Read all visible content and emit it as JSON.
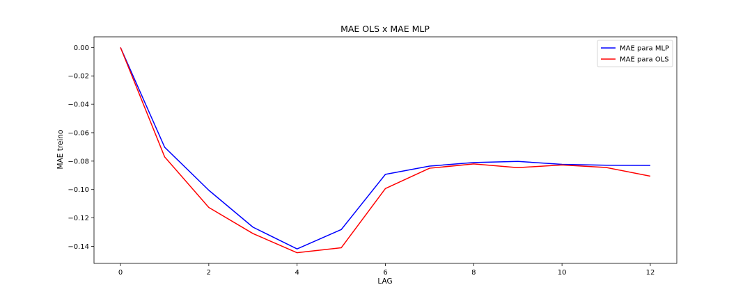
{
  "chart_data": {
    "type": "line",
    "title": "MAE OLS x MAE MLP",
    "xlabel": "LAG",
    "ylabel": "MAE treino",
    "x": [
      0,
      1,
      2,
      3,
      4,
      5,
      6,
      7,
      8,
      9,
      10,
      11,
      12
    ],
    "xlim": [
      -0.6,
      12.6
    ],
    "ylim": [
      -0.152,
      0.0075
    ],
    "xticks": [
      0,
      2,
      4,
      6,
      8,
      10,
      12
    ],
    "yticks": [
      0.0,
      -0.02,
      -0.04,
      -0.06,
      -0.08,
      -0.1,
      -0.12,
      -0.14
    ],
    "ytick_labels": [
      "0.00",
      "−0.02",
      "−0.04",
      "−0.06",
      "−0.08",
      "−0.10",
      "−0.12",
      "−0.14"
    ],
    "grid": false,
    "legend_position": "top-right",
    "series": [
      {
        "name": "MAE para MLP",
        "color": "#0000ff",
        "values": [
          0.0,
          -0.0702,
          -0.1005,
          -0.1265,
          -0.1418,
          -0.1282,
          -0.0893,
          -0.0835,
          -0.081,
          -0.0802,
          -0.0823,
          -0.0829,
          -0.083
        ]
      },
      {
        "name": "MAE para OLS",
        "color": "#ff0000",
        "values": [
          0.0,
          -0.077,
          -0.1126,
          -0.131,
          -0.1445,
          -0.141,
          -0.0993,
          -0.085,
          -0.082,
          -0.0846,
          -0.0827,
          -0.0845,
          -0.0906
        ]
      }
    ]
  }
}
